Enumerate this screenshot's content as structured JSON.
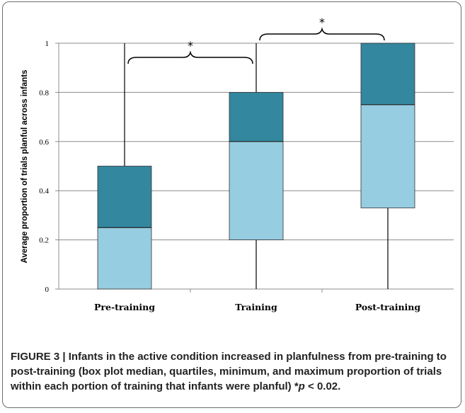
{
  "chart_data": {
    "type": "box",
    "ylabel": "Average proportion of trials planful across infants",
    "ylim": [
      0,
      1
    ],
    "yticks": [
      "0",
      "0.2",
      "0.4",
      "0.6",
      "0.8",
      "1"
    ],
    "ytick_values": [
      0,
      0.2,
      0.4,
      0.6,
      0.8,
      1
    ],
    "grid": "horizontal",
    "categories": [
      "Pre-training",
      "Training",
      "Post-training"
    ],
    "boxes": [
      {
        "min": 0,
        "q1": 0,
        "median": 0.25,
        "q3": 0.5,
        "max": 1
      },
      {
        "min": 0,
        "q1": 0.2,
        "median": 0.6,
        "q3": 0.8,
        "max": 1
      },
      {
        "min": 0,
        "q1": 0.33,
        "median": 0.75,
        "q3": 1,
        "max": 1
      }
    ],
    "colors": {
      "lower_box": "#96cde0",
      "upper_box": "#33879f",
      "whisker": "#000000",
      "grid": "#8c8c8c"
    },
    "annotations": [
      {
        "from": "Pre-training",
        "to": "Training",
        "label": "*"
      },
      {
        "from": "Training",
        "to": "Post-training",
        "label": "*"
      }
    ]
  },
  "caption": {
    "figure": "FIGURE 3 | ",
    "text": "Infants in the active condition increased in planfulness from pre-training to post-training (box plot median, quartiles, minimum, and maximum proportion of trials within each portion of training that infants were planful) *",
    "p_symbol": "p",
    "p_rest": " < 0.02."
  }
}
